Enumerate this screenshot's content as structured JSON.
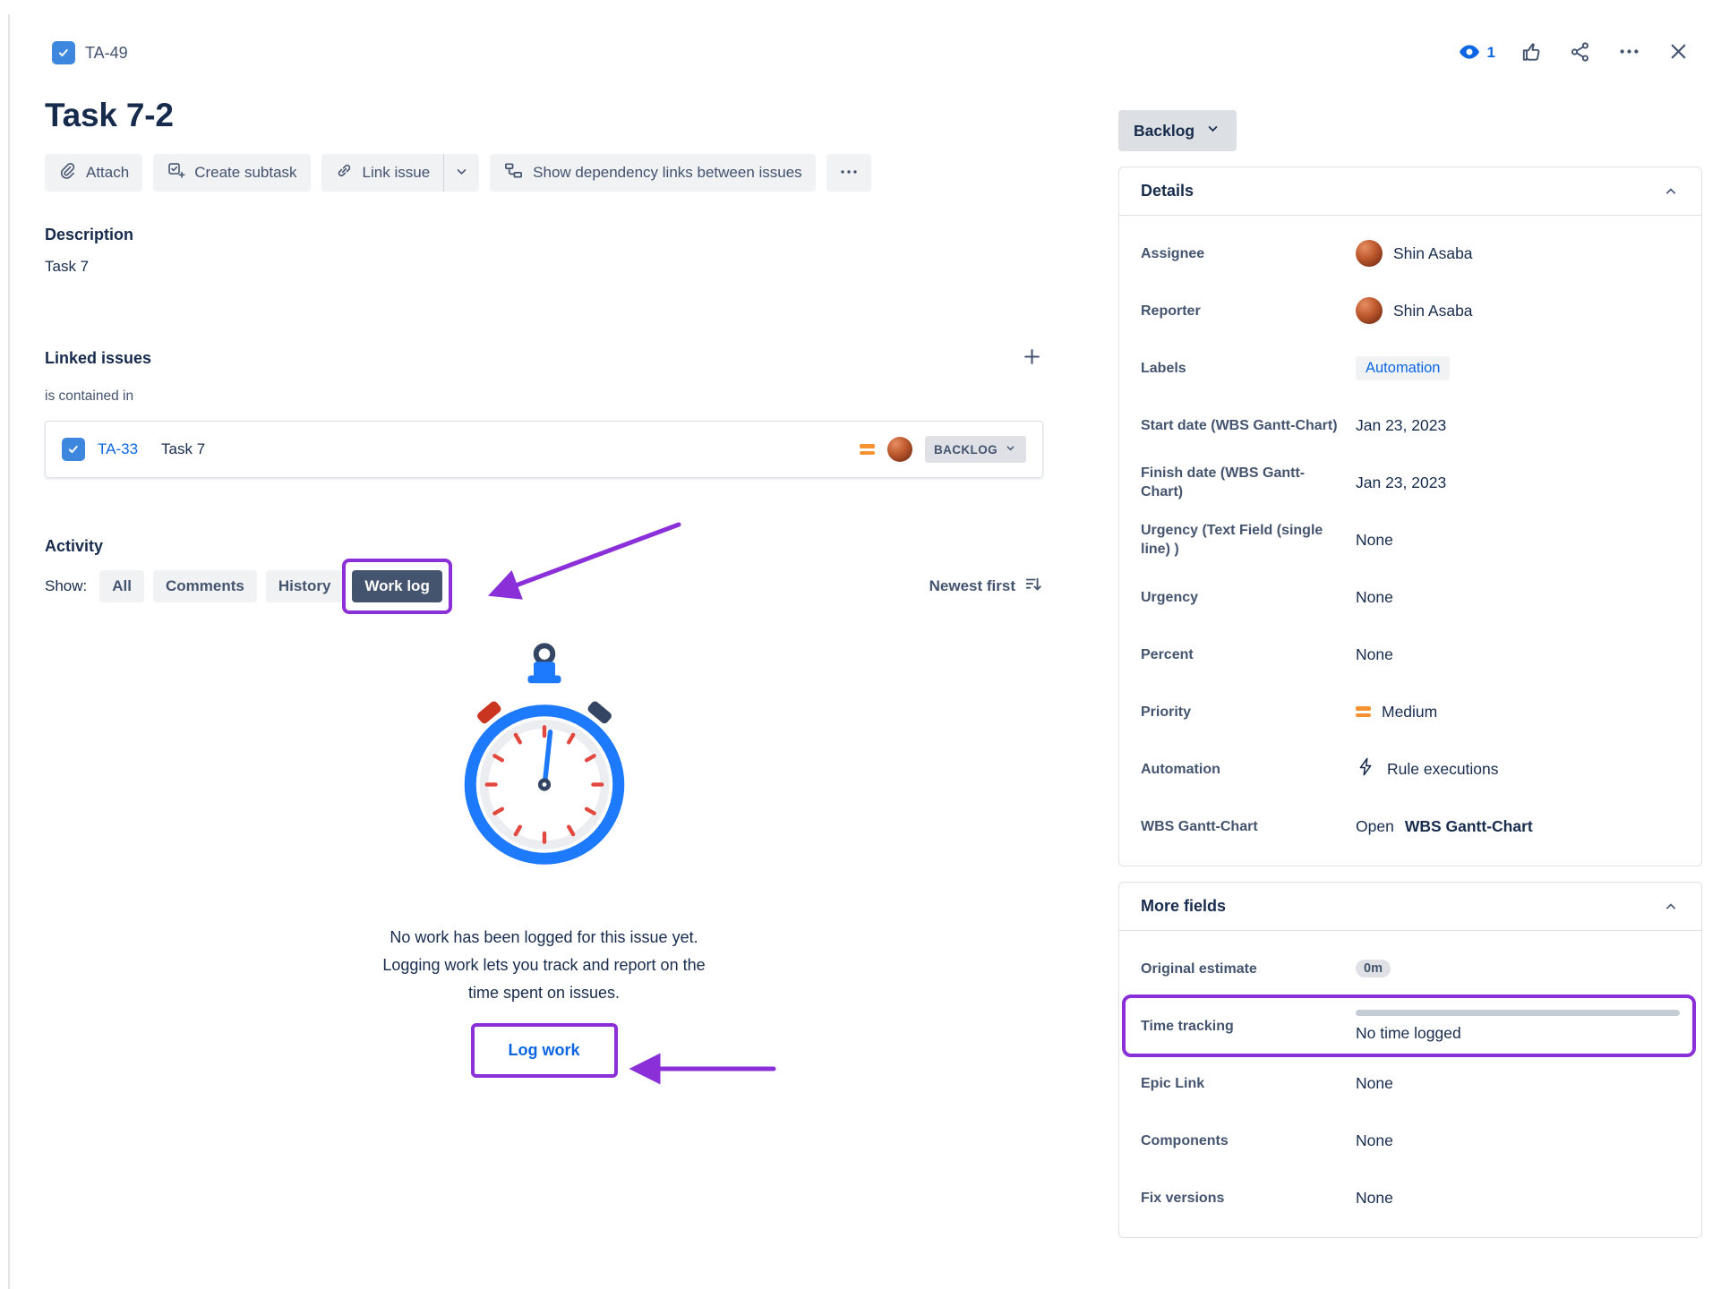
{
  "colors": {
    "annotation_purple": "#8B30D9",
    "link_blue": "#0C66E4",
    "priority_orange": "#F79232",
    "task_icon_blue": "#3E87DE",
    "selected_tab_bg": "#44546F"
  },
  "icon_names": [
    "task-type-icon",
    "watch-icon",
    "thumbs-up-icon",
    "share-icon",
    "more-icon",
    "close-icon",
    "paperclip-icon",
    "subtask-icon",
    "link-icon",
    "chevron-down-icon",
    "dependency-icon",
    "ellipsis-icon",
    "plus-icon",
    "priority-medium-icon",
    "sort-descending-icon",
    "stopwatch-illustration",
    "lightning-icon",
    "chevron-up-icon"
  ],
  "header": {
    "issue_key": "TA-49",
    "watch_count": "1"
  },
  "title": "Task 7-2",
  "toolbar": {
    "attach": "Attach",
    "create_subtask": "Create subtask",
    "link_issue": "Link issue",
    "show_dependency": "Show dependency links between issues"
  },
  "description": {
    "heading": "Description",
    "body": "Task 7"
  },
  "linked_issues": {
    "heading": "Linked issues",
    "relation": "is contained in",
    "issue": {
      "key": "TA-33",
      "summary": "Task 7",
      "status": "BACKLOG"
    }
  },
  "activity": {
    "heading": "Activity",
    "show_label": "Show:",
    "tabs": [
      {
        "label": "All",
        "selected": false,
        "annotated": false
      },
      {
        "label": "Comments",
        "selected": false,
        "annotated": false
      },
      {
        "label": "History",
        "selected": false,
        "annotated": false
      },
      {
        "label": "Work log",
        "selected": true,
        "annotated": true
      }
    ],
    "sort_label": "Newest first",
    "empty_message": "No work has been logged for this issue yet.\nLogging work lets you track and report on the\ntime spent on issues.",
    "log_work_label": "Log work"
  },
  "sidebar": {
    "status": "Backlog",
    "details": {
      "heading": "Details",
      "fields": [
        {
          "label": "Assignee",
          "type": "user",
          "value": "Shin Asaba"
        },
        {
          "label": "Reporter",
          "type": "user",
          "value": "Shin Asaba"
        },
        {
          "label": "Labels",
          "type": "chip",
          "value": "Automation"
        },
        {
          "label": "Start date (WBS Gantt-Chart)",
          "type": "text",
          "value": "Jan 23, 2023"
        },
        {
          "label": "Finish date (WBS Gantt-Chart)",
          "type": "text",
          "value": "Jan 23, 2023"
        },
        {
          "label": "Urgency (Text Field (single line) )",
          "type": "text",
          "value": "None"
        },
        {
          "label": "Urgency",
          "type": "text",
          "value": "None"
        },
        {
          "label": "Percent",
          "type": "text",
          "value": "None"
        },
        {
          "label": "Priority",
          "type": "priority",
          "value": "Medium"
        },
        {
          "label": "Automation",
          "type": "bolt",
          "value": "Rule executions"
        },
        {
          "label": "WBS Gantt-Chart",
          "type": "open_link",
          "prefix": "Open",
          "value": "WBS Gantt-Chart"
        }
      ]
    },
    "more_fields": {
      "heading": "More fields",
      "fields": [
        {
          "label": "Original estimate",
          "type": "badge",
          "value": "0m"
        },
        {
          "label": "Time tracking",
          "type": "timetracking",
          "value": "No time logged",
          "annotated": true
        },
        {
          "label": "Epic Link",
          "type": "text",
          "value": "None"
        },
        {
          "label": "Components",
          "type": "text",
          "value": "None"
        },
        {
          "label": "Fix versions",
          "type": "text",
          "value": "None"
        }
      ]
    }
  }
}
